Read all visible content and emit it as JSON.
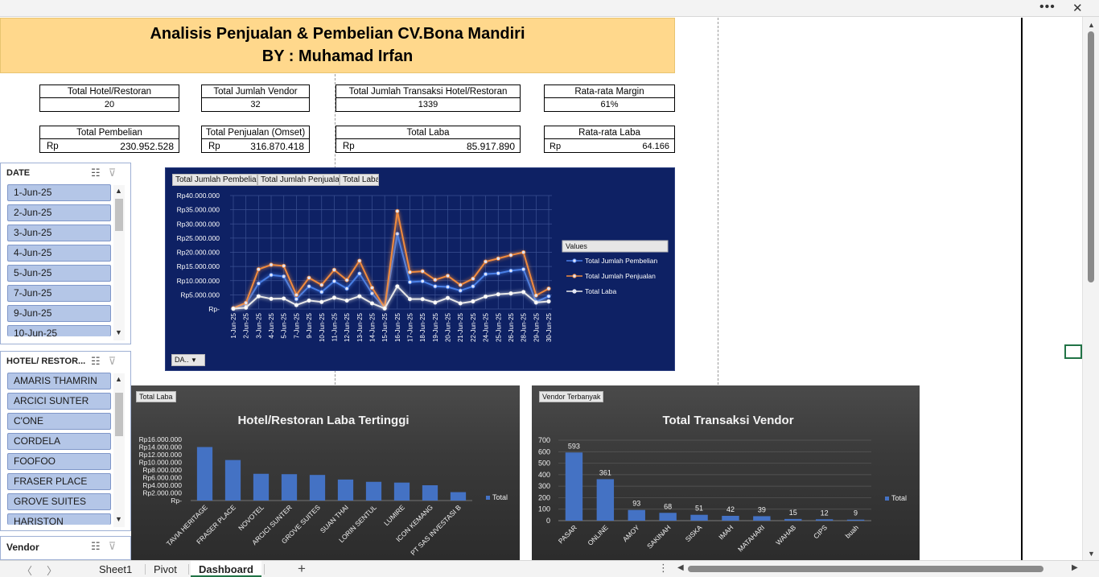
{
  "window": {
    "more_icon": "more-horizontal-icon",
    "close_icon": "close-icon"
  },
  "header": {
    "title": "Analisis Penjualan & Pembelian CV.Bona Mandiri",
    "subtitle": "BY : Muhamad Irfan"
  },
  "kpis": {
    "total_hotel": {
      "label": "Total Hotel/Restoran",
      "value": "20"
    },
    "total_vendor": {
      "label": "Total Jumlah Vendor",
      "value": "32"
    },
    "total_transaksi": {
      "label": "Total Jumlah Transaksi Hotel/Restoran",
      "value": "1339"
    },
    "rata_margin": {
      "label": "Rata-rata Margin",
      "value": "61%"
    },
    "total_pembelian": {
      "label": "Total Pembelian",
      "currency": "Rp",
      "value": "230.952.528"
    },
    "total_penjualan": {
      "label": "Total Penjualan (Omset)",
      "currency": "Rp",
      "value": "316.870.418"
    },
    "total_laba": {
      "label": "Total Laba",
      "currency": "Rp",
      "value": "85.917.890"
    },
    "rata_laba": {
      "label": "Rata-rata Laba",
      "currency": "Rp",
      "value": "64.166"
    }
  },
  "slicers": {
    "date": {
      "title": "DATE",
      "items": [
        "1-Jun-25",
        "2-Jun-25",
        "3-Jun-25",
        "4-Jun-25",
        "5-Jun-25",
        "7-Jun-25",
        "9-Jun-25",
        "10-Jun-25"
      ]
    },
    "hotel": {
      "title": "HOTEL/ RESTOR...",
      "items": [
        "AMARIS THAMRIN",
        "ARCICI SUNTER",
        "C'ONE",
        "CORDELA",
        "FOOFOO",
        "FRASER PLACE",
        "GROVE SUITES",
        "HARISTON"
      ]
    },
    "vendor": {
      "title": "Vendor"
    },
    "icons": {
      "multiselect": "multi-select-icon",
      "clear_filter": "clear-filter-icon"
    }
  },
  "chart_data": [
    {
      "type": "line",
      "field_buttons": [
        "Total Jumlah Pembelian",
        "Total Jumlah Penjualan",
        "Total Laba"
      ],
      "filter_button": "DA..",
      "legend_title": "Values",
      "legend_placement": "right",
      "x": [
        "1-Jun-25",
        "2-Jun-25",
        "3-Jun-25",
        "4-Jun-25",
        "5-Jun-25",
        "7-Jun-25",
        "9-Jun-25",
        "10-Jun-25",
        "11-Jun-25",
        "12-Jun-25",
        "13-Jun-25",
        "14-Jun-25",
        "15-Jun-25",
        "16-Jun-25",
        "17-Jun-25",
        "18-Jun-25",
        "19-Jun-25",
        "20-Jun-25",
        "21-Jun-25",
        "22-Jun-25",
        "24-Jun-25",
        "25-Jun-25",
        "26-Jun-25",
        "28-Jun-25",
        "29-Jun-25",
        "30-Jun-25"
      ],
      "y_ticks": [
        "Rp-",
        "Rp5.000.000",
        "Rp10.000.000",
        "Rp15.000.000",
        "Rp20.000.000",
        "Rp25.000.000",
        "Rp30.000.000",
        "Rp35.000.000",
        "Rp40.000.000"
      ],
      "ylim": [
        0,
        40000000
      ],
      "grid": true,
      "series": [
        {
          "name": "Total Jumlah Pembelian",
          "color": "#4a7fe6",
          "values": [
            200000,
            1700000,
            9000000,
            12000000,
            11500000,
            3500000,
            8000000,
            6000000,
            9800000,
            7200000,
            12500000,
            5500000,
            300000,
            26500000,
            9500000,
            9800000,
            8000000,
            7800000,
            6500000,
            8000000,
            12300000,
            12600000,
            13500000,
            14000000,
            2500000,
            4500000
          ]
        },
        {
          "name": "Total Jumlah Penjualan",
          "color": "#f08a3c",
          "values": [
            300000,
            2200000,
            14000000,
            15600000,
            15200000,
            5000000,
            11000000,
            8500000,
            13800000,
            10200000,
            17000000,
            7500000,
            500000,
            34500000,
            13000000,
            13300000,
            10300000,
            11700000,
            8500000,
            10700000,
            16700000,
            17800000,
            19000000,
            20000000,
            4800000,
            7200000
          ]
        },
        {
          "name": "Total Laba",
          "color": "#e8e8e8",
          "values": [
            100000,
            500000,
            4500000,
            3600000,
            3700000,
            1400000,
            3000000,
            2500000,
            4000000,
            3000000,
            4500000,
            2000000,
            200000,
            8000000,
            3500000,
            3500000,
            2300000,
            3900000,
            2000000,
            2700000,
            4400000,
            5200000,
            5500000,
            6000000,
            2300000,
            2700000
          ]
        }
      ]
    },
    {
      "type": "bar",
      "field_button": "Total Laba",
      "title": "Hotel/Restoran Laba Tertinggi",
      "legend": "Total",
      "legend_placement": "right",
      "categories": [
        "TAVIA HERITAGE",
        "FRASER PLACE",
        "NOVOTEL",
        "ARCICI SUNTER",
        "GROVE SUITES",
        "SUAN THAI",
        "LORIN SENTUL",
        "LUMIRE",
        "ICON KEMANG",
        "PT SAS INVESTASI B"
      ],
      "values": [
        14000000,
        10600000,
        7000000,
        6900000,
        6700000,
        5500000,
        4900000,
        4700000,
        4000000,
        2200000
      ],
      "y_ticks": [
        "Rp-",
        "Rp2.000.000",
        "Rp4.000.000",
        "Rp6.000.000",
        "Rp8.000.000",
        "Rp10.000.000",
        "Rp12.000.000",
        "Rp14.000.000",
        "Rp16.000.000"
      ],
      "ylim": [
        0,
        16000000
      ],
      "color": "#4472c4"
    },
    {
      "type": "bar",
      "field_button": "Vendor Terbanyak",
      "title": "Total Transaksi Vendor",
      "legend": "Total",
      "legend_placement": "right",
      "categories": [
        "PASAR",
        "ONLINE",
        "AMOY",
        "SAKINAH",
        "SISKA",
        "IMAH",
        "MATAHARI",
        "WAHAB",
        "CIPS",
        "buah"
      ],
      "values": [
        593,
        361,
        93,
        68,
        51,
        42,
        39,
        15,
        12,
        9
      ],
      "y_ticks": [
        "0",
        "100",
        "200",
        "300",
        "400",
        "500",
        "600",
        "700"
      ],
      "ylim": [
        0,
        700
      ],
      "grid": true,
      "color": "#4472c4"
    }
  ],
  "tabs": {
    "items": [
      "Sheet1",
      "Pivot",
      "Dashboard"
    ],
    "active": "Dashboard",
    "add": "+",
    "prev_icon": "chevron-left-icon",
    "next_icon": "chevron-right-icon"
  }
}
